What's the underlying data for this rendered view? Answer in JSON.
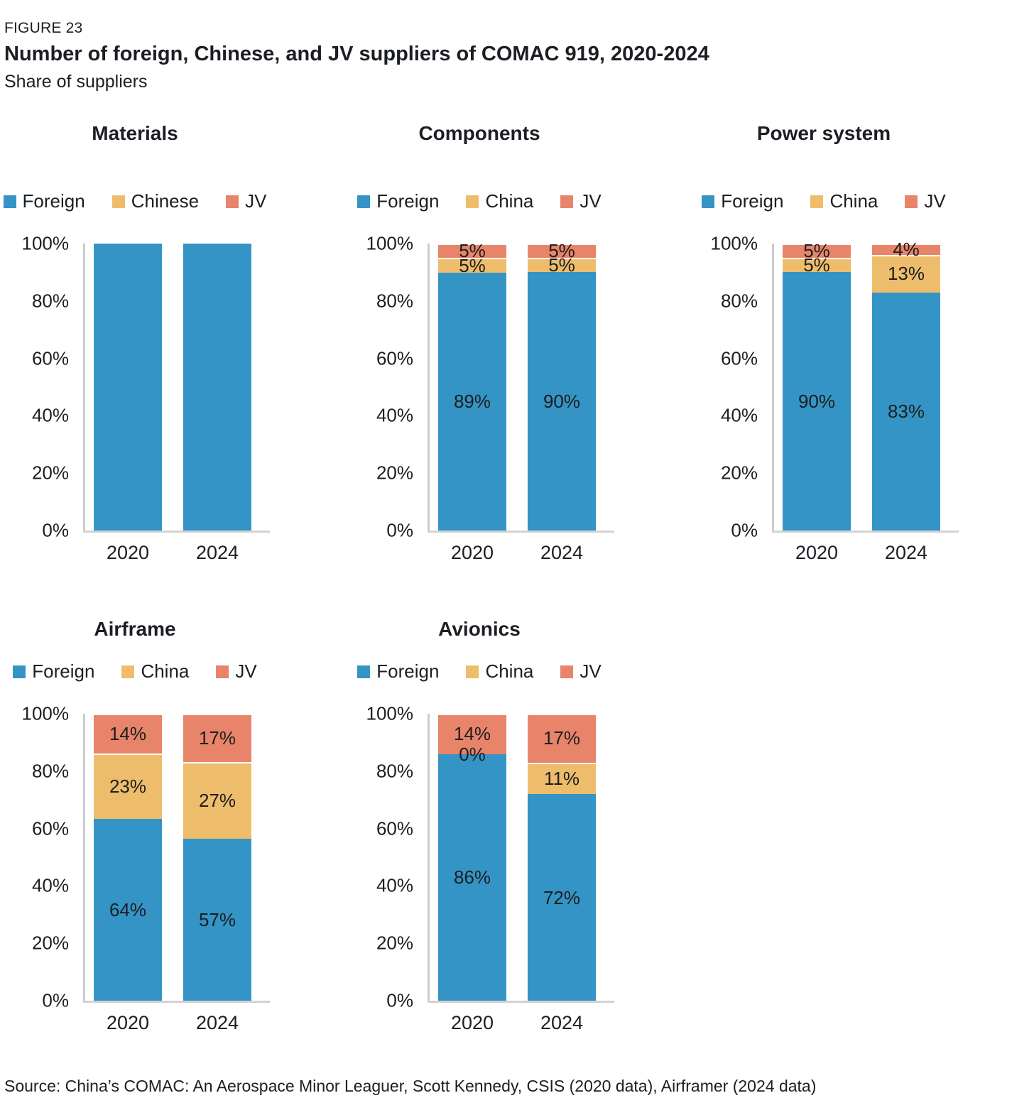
{
  "header": {
    "figure_label": "FIGURE 23",
    "title": "Number of foreign, Chinese, and JV suppliers of COMAC 919, 2020-2024",
    "subtitle": "Share of suppliers"
  },
  "source": "Source: China’s COMAC: An Aerospace Minor Leaguer, Scott Kennedy, CSIS (2020 data), Airframer (2024 data)",
  "colors": {
    "foreign": "#3494c6",
    "china": "#edbd6c",
    "jv": "#e8846a",
    "axis": "#c9cbcc",
    "label_text": "#1d1d1d"
  },
  "chart_data": [
    {
      "type": "bar",
      "stacked": true,
      "title": "Materials",
      "categories": [
        "2020",
        "2024"
      ],
      "series": [
        {
          "name": "Foreign",
          "color": "#3494c6",
          "values": [
            100,
            100
          ],
          "bar_labels": [
            "",
            ""
          ]
        },
        {
          "name": "Chinese",
          "color": "#edbd6c",
          "values": [
            0,
            0
          ],
          "bar_labels": [
            "",
            ""
          ]
        },
        {
          "name": "JV",
          "color": "#e8846a",
          "values": [
            0,
            0
          ],
          "bar_labels": [
            "",
            ""
          ]
        }
      ],
      "ylim": [
        0,
        100
      ],
      "yticks": [
        {
          "value": 0,
          "label": "0%"
        },
        {
          "value": 20,
          "label": "20%"
        },
        {
          "value": 40,
          "label": "40%"
        },
        {
          "value": 60,
          "label": "60%"
        },
        {
          "value": 80,
          "label": "80%"
        },
        {
          "value": 100,
          "label": "100%"
        }
      ],
      "legend_position": "top",
      "grid": false
    },
    {
      "type": "bar",
      "stacked": true,
      "title": "Components",
      "categories": [
        "2020",
        "2024"
      ],
      "series": [
        {
          "name": "Foreign",
          "color": "#3494c6",
          "values": [
            89,
            90
          ],
          "bar_labels": [
            "89%",
            "90%"
          ]
        },
        {
          "name": "China",
          "color": "#edbd6c",
          "values": [
            5,
            5
          ],
          "bar_labels": [
            "5%",
            "5%"
          ]
        },
        {
          "name": "JV",
          "color": "#e8846a",
          "values": [
            5,
            5
          ],
          "bar_labels": [
            "5%",
            "5%"
          ]
        }
      ],
      "ylim": [
        0,
        100
      ],
      "yticks": [
        {
          "value": 0,
          "label": "0%"
        },
        {
          "value": 20,
          "label": "20%"
        },
        {
          "value": 40,
          "label": "40%"
        },
        {
          "value": 60,
          "label": "60%"
        },
        {
          "value": 80,
          "label": "80%"
        },
        {
          "value": 100,
          "label": "100%"
        }
      ],
      "legend_position": "top",
      "grid": false
    },
    {
      "type": "bar",
      "stacked": true,
      "title": "Power system",
      "categories": [
        "2020",
        "2024"
      ],
      "series": [
        {
          "name": "Foreign",
          "color": "#3494c6",
          "values": [
            90,
            83
          ],
          "bar_labels": [
            "90%",
            "83%"
          ]
        },
        {
          "name": "China",
          "color": "#edbd6c",
          "values": [
            5,
            13
          ],
          "bar_labels": [
            "5%",
            "13%"
          ]
        },
        {
          "name": "JV",
          "color": "#e8846a",
          "values": [
            5,
            4
          ],
          "bar_labels": [
            "5%",
            "4%"
          ]
        }
      ],
      "ylim": [
        0,
        100
      ],
      "yticks": [
        {
          "value": 0,
          "label": "0%"
        },
        {
          "value": 20,
          "label": "20%"
        },
        {
          "value": 40,
          "label": "40%"
        },
        {
          "value": 60,
          "label": "60%"
        },
        {
          "value": 80,
          "label": "80%"
        },
        {
          "value": 100,
          "label": "100%"
        }
      ],
      "legend_position": "top",
      "grid": false
    },
    {
      "type": "bar",
      "stacked": true,
      "title": "Airframe",
      "categories": [
        "2020",
        "2024"
      ],
      "series": [
        {
          "name": "Foreign",
          "color": "#3494c6",
          "values": [
            64,
            57
          ],
          "bar_labels": [
            "64%",
            "57%"
          ]
        },
        {
          "name": "China",
          "color": "#edbd6c",
          "values": [
            23,
            27
          ],
          "bar_labels": [
            "23%",
            "27%"
          ]
        },
        {
          "name": "JV",
          "color": "#e8846a",
          "values": [
            14,
            17
          ],
          "bar_labels": [
            "14%",
            "17%"
          ]
        }
      ],
      "ylim": [
        0,
        100
      ],
      "yticks": [
        {
          "value": 0,
          "label": "0%"
        },
        {
          "value": 20,
          "label": "20%"
        },
        {
          "value": 40,
          "label": "40%"
        },
        {
          "value": 60,
          "label": "60%"
        },
        {
          "value": 80,
          "label": "80%"
        },
        {
          "value": 100,
          "label": "100%"
        }
      ],
      "legend_position": "top",
      "grid": false
    },
    {
      "type": "bar",
      "stacked": true,
      "title": "Avionics",
      "categories": [
        "2020",
        "2024"
      ],
      "series": [
        {
          "name": "Foreign",
          "color": "#3494c6",
          "values": [
            86,
            72
          ],
          "bar_labels": [
            "86%",
            "72%"
          ]
        },
        {
          "name": "China",
          "color": "#edbd6c",
          "values": [
            0,
            11
          ],
          "bar_labels": [
            "0%",
            "11%"
          ]
        },
        {
          "name": "JV",
          "color": "#e8846a",
          "values": [
            14,
            17
          ],
          "bar_labels": [
            "14%",
            "17%"
          ]
        }
      ],
      "ylim": [
        0,
        100
      ],
      "yticks": [
        {
          "value": 0,
          "label": "0%"
        },
        {
          "value": 20,
          "label": "20%"
        },
        {
          "value": 40,
          "label": "40%"
        },
        {
          "value": 60,
          "label": "60%"
        },
        {
          "value": 80,
          "label": "80%"
        },
        {
          "value": 100,
          "label": "100%"
        }
      ],
      "legend_position": "top",
      "grid": false
    }
  ]
}
